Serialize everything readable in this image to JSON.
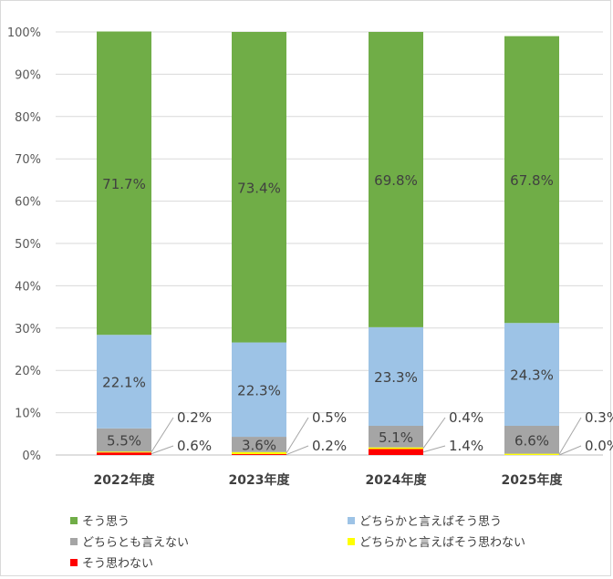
{
  "chart_data": {
    "type": "bar",
    "stacked": true,
    "categories": [
      "2022年度",
      "2023年度",
      "2024年度",
      "2025年度"
    ],
    "series": [
      {
        "name": "そう思わない",
        "color": "#ff0000",
        "values": [
          0.6,
          0.2,
          1.4,
          0.0
        ],
        "labels": [
          "0.6%",
          "0.2%",
          "1.4%",
          "0.0%"
        ]
      },
      {
        "name": "どちらかと言えばそう思わない",
        "color": "#ffff00",
        "values": [
          0.2,
          0.5,
          0.4,
          0.3
        ],
        "labels": [
          "0.2%",
          "0.5%",
          "0.4%",
          "0.3%"
        ]
      },
      {
        "name": "どちらとも言えない",
        "color": "#a5a5a5",
        "values": [
          5.5,
          3.6,
          5.1,
          6.6
        ],
        "labels": [
          "5.5%",
          "3.6%",
          "5.1%",
          "6.6%"
        ]
      },
      {
        "name": "どちらかと言えばそう思う",
        "color": "#9dc3e6",
        "values": [
          22.1,
          22.3,
          23.3,
          24.3
        ],
        "labels": [
          "22.1%",
          "22.3%",
          "23.3%",
          "24.3%"
        ]
      },
      {
        "name": "そう思う",
        "color": "#70ad47",
        "values": [
          71.7,
          73.4,
          69.8,
          67.8
        ],
        "labels": [
          "71.7%",
          "73.4%",
          "69.8%",
          "67.8%"
        ]
      }
    ],
    "ylim": [
      0,
      100
    ],
    "yticks": [
      "0%",
      "10%",
      "20%",
      "30%",
      "40%",
      "50%",
      "60%",
      "70%",
      "80%",
      "90%",
      "100%"
    ],
    "grid": true,
    "legend_position": "bottom",
    "legend_order": [
      "そう思う",
      "どちらかと言えばそう思う",
      "どちらとも言えない",
      "どちらかと言えばそう思わない",
      "そう思わない"
    ]
  }
}
